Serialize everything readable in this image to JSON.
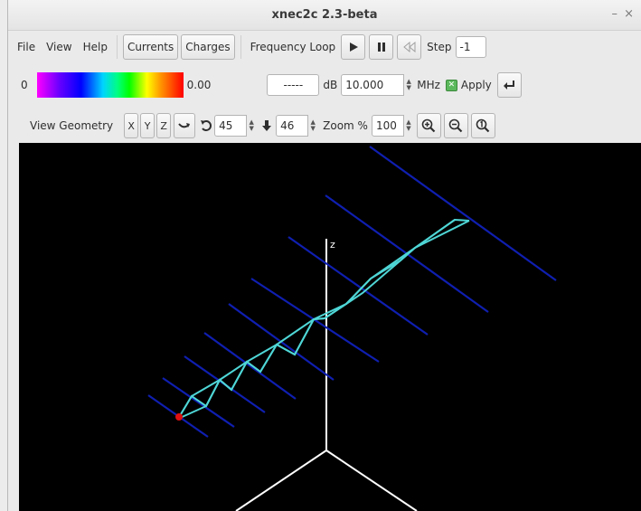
{
  "window": {
    "title": "xnec2c 2.3-beta",
    "minimize_glyph": "–",
    "close_glyph": "×"
  },
  "menu": {
    "file": "File",
    "view": "View",
    "help": "Help"
  },
  "toolbar": {
    "currents_label": "Currents",
    "charges_label": "Charges",
    "frequency_loop_label": "Frequency Loop",
    "play_icon": "play-icon",
    "pause_icon": "pause-icon",
    "rewind_icon": "rewind-icon",
    "step_label": "Step",
    "step_value": "-1"
  },
  "scale_bar": {
    "min_label": "0",
    "max_label": "0.00",
    "db_value": "-----",
    "db_label": "dB",
    "frequency_value": "10.000",
    "mhz_label": "MHz",
    "apply_checked": true,
    "apply_label": "Apply",
    "enter_icon": "enter-icon"
  },
  "geometry_bar": {
    "view_geometry_label": "View Geometry",
    "x_label": "X",
    "y_label": "Y",
    "z_label": "Z",
    "rotate_value": "45",
    "tilt_value": "46",
    "zoom_label": "Zoom %",
    "zoom_value": "100"
  },
  "canvas": {
    "axis_label": "z",
    "colors": {
      "background": "#000000",
      "axis": "#ffffff",
      "elements": "#0f1fb0",
      "boom": "#4fd6d6",
      "feed": "#e01010"
    }
  }
}
